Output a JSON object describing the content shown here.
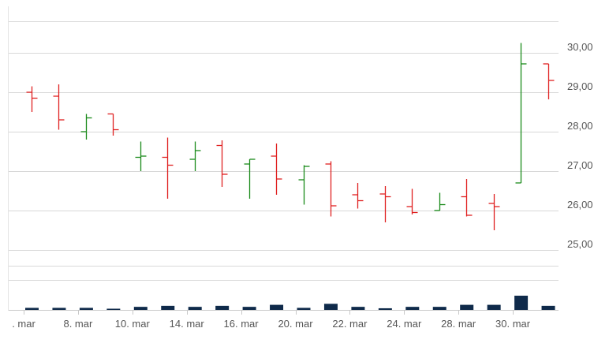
{
  "chart_data": {
    "type": "ohlc",
    "title": "",
    "xlabel": "",
    "ylabel": "",
    "ylim": [
      24.6,
      30.9
    ],
    "y_ticks": [
      "30,00",
      "29,00",
      "28,00",
      "27,00",
      "26,00",
      "25,00"
    ],
    "y_tick_values": [
      30,
      29,
      28,
      27,
      26,
      25
    ],
    "x_tick_labels": [
      ". mar",
      "8. mar",
      "10. mar",
      "14. mar",
      "16. mar",
      "20. mar",
      "22. mar",
      "24. mar",
      "28. mar",
      "30. mar"
    ],
    "x_tick_slots": [
      0,
      2,
      4,
      6,
      8,
      10,
      12,
      14,
      16,
      18
    ],
    "grid": true,
    "colors": {
      "up": "#1a8a1a",
      "down": "#e02020",
      "volume": "#0f2a4a",
      "grid": "#d8d8d8"
    },
    "series": [
      {
        "o": 29.0,
        "h": 29.15,
        "l": 28.5,
        "c": 28.85,
        "v": 1.0
      },
      {
        "o": 28.9,
        "h": 29.2,
        "l": 28.05,
        "c": 28.3,
        "v": 1.0
      },
      {
        "o": 28.0,
        "h": 28.45,
        "l": 27.8,
        "c": 28.35,
        "v": 1.0
      },
      {
        "o": 28.45,
        "h": 28.45,
        "l": 27.9,
        "c": 28.05,
        "v": 0.5
      },
      {
        "o": 27.35,
        "h": 27.75,
        "l": 27.0,
        "c": 27.38,
        "v": 1.5
      },
      {
        "o": 27.35,
        "h": 27.85,
        "l": 26.3,
        "c": 27.15,
        "v": 2.0
      },
      {
        "o": 27.3,
        "h": 27.75,
        "l": 27.0,
        "c": 27.52,
        "v": 1.5
      },
      {
        "o": 27.65,
        "h": 27.78,
        "l": 26.6,
        "c": 26.92,
        "v": 2.0
      },
      {
        "o": 27.18,
        "h": 27.3,
        "l": 26.3,
        "c": 27.3,
        "v": 1.5
      },
      {
        "o": 27.38,
        "h": 27.7,
        "l": 26.4,
        "c": 26.8,
        "v": 2.5
      },
      {
        "o": 26.78,
        "h": 27.15,
        "l": 26.15,
        "c": 27.12,
        "v": 1.0
      },
      {
        "o": 27.18,
        "h": 27.25,
        "l": 25.85,
        "c": 26.12,
        "v": 3.0
      },
      {
        "o": 26.4,
        "h": 26.7,
        "l": 26.05,
        "c": 26.25,
        "v": 1.5
      },
      {
        "o": 26.42,
        "h": 26.62,
        "l": 25.7,
        "c": 26.35,
        "v": 0.8
      },
      {
        "o": 26.1,
        "h": 26.55,
        "l": 25.9,
        "c": 25.95,
        "v": 1.5
      },
      {
        "o": 26.0,
        "h": 26.45,
        "l": 26.0,
        "c": 26.15,
        "v": 1.5
      },
      {
        "o": 26.35,
        "h": 26.8,
        "l": 25.85,
        "c": 25.88,
        "v": 2.5
      },
      {
        "o": 26.18,
        "h": 26.42,
        "l": 25.5,
        "c": 26.1,
        "v": 2.5
      },
      {
        "o": 26.7,
        "h": 30.25,
        "l": 26.7,
        "c": 29.72,
        "v": 7.0
      },
      {
        "o": 29.72,
        "h": 29.72,
        "l": 28.82,
        "c": 29.3,
        "v": 2.0
      }
    ]
  }
}
